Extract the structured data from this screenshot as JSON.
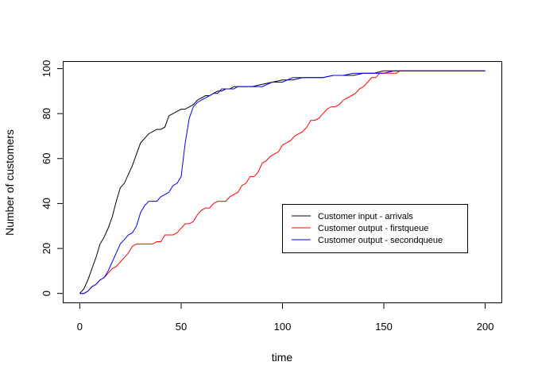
{
  "chart_data": {
    "type": "line",
    "title": "",
    "xlabel": "time",
    "ylabel": "Number of customers",
    "xlim": [
      -8,
      208
    ],
    "ylim": [
      -4,
      103
    ],
    "xticks": [
      0,
      50,
      100,
      150,
      200
    ],
    "yticks": [
      0,
      20,
      40,
      60,
      80,
      100
    ],
    "grid": false,
    "legend": "center-right",
    "series": [
      {
        "name": "Customer input - arrivals",
        "color": "#000000",
        "x": [
          0,
          2,
          4,
          6,
          8,
          10,
          12,
          14,
          16,
          18,
          20,
          22,
          24,
          26,
          28,
          30,
          32,
          34,
          36,
          38,
          40,
          42,
          44,
          46,
          48,
          50,
          52,
          54,
          56,
          58,
          60,
          62,
          64,
          66,
          68,
          70,
          72,
          74,
          76,
          78,
          80,
          85,
          90,
          95,
          100,
          105,
          110,
          115,
          120,
          125,
          130,
          135,
          140,
          145,
          150,
          155,
          160,
          170,
          180,
          190,
          200
        ],
        "y": [
          0,
          2,
          6,
          11,
          16,
          22,
          25,
          29,
          34,
          41,
          47,
          49,
          53,
          57,
          62,
          67,
          69,
          71,
          72,
          73,
          73,
          74,
          79,
          80,
          81,
          82,
          82,
          83,
          84,
          86,
          87,
          88,
          88,
          89,
          90,
          90,
          91,
          91,
          92,
          92,
          92,
          92,
          93,
          94,
          95,
          95,
          96,
          96,
          96,
          97,
          97,
          97,
          98,
          98,
          99,
          99,
          99,
          99,
          99,
          99,
          99
        ]
      },
      {
        "name": "Customer output - firstqueue",
        "color": "#ff0000",
        "x": [
          0,
          2,
          4,
          6,
          8,
          10,
          12,
          14,
          16,
          18,
          20,
          22,
          24,
          26,
          28,
          30,
          32,
          34,
          36,
          38,
          40,
          42,
          44,
          46,
          48,
          50,
          52,
          54,
          56,
          58,
          60,
          62,
          64,
          66,
          68,
          70,
          72,
          74,
          76,
          78,
          80,
          82,
          84,
          86,
          88,
          90,
          92,
          94,
          96,
          98,
          100,
          102,
          104,
          106,
          108,
          110,
          112,
          114,
          116,
          118,
          120,
          122,
          124,
          126,
          128,
          130,
          132,
          134,
          136,
          138,
          140,
          142,
          144,
          146,
          148,
          150,
          152,
          154,
          156,
          158,
          160,
          170,
          180,
          190,
          200
        ],
        "y": [
          0,
          0,
          1,
          3,
          4,
          6,
          7,
          9,
          11,
          12,
          14,
          16,
          18,
          21,
          22,
          22,
          22,
          22,
          22,
          23,
          23,
          26,
          26,
          26,
          27,
          29,
          31,
          31,
          32,
          35,
          37,
          38,
          38,
          40,
          41,
          41,
          41,
          43,
          44,
          45,
          48,
          49,
          52,
          52,
          54,
          58,
          59,
          61,
          62,
          63,
          66,
          67,
          68,
          70,
          71,
          72,
          74,
          77,
          77,
          78,
          80,
          82,
          83,
          83,
          84,
          86,
          87,
          88,
          89,
          91,
          92,
          94,
          96,
          96,
          98,
          98,
          98,
          98,
          98,
          99,
          99,
          99,
          99,
          99,
          99
        ]
      },
      {
        "name": "Customer output - secondqueue",
        "color": "#0000ff",
        "x": [
          0,
          2,
          4,
          6,
          8,
          10,
          12,
          14,
          16,
          18,
          20,
          22,
          24,
          26,
          28,
          30,
          32,
          34,
          36,
          38,
          40,
          42,
          44,
          46,
          48,
          50,
          52,
          54,
          56,
          58,
          60,
          62,
          64,
          66,
          68,
          70,
          72,
          74,
          76,
          78,
          80,
          85,
          90,
          95,
          100,
          105,
          110,
          115,
          120,
          125,
          130,
          135,
          140,
          145,
          150,
          155,
          160,
          170,
          180,
          190,
          200
        ],
        "y": [
          0,
          0,
          1,
          3,
          4,
          6,
          7,
          10,
          14,
          18,
          22,
          24,
          26,
          27,
          30,
          36,
          39,
          41,
          41,
          41,
          43,
          44,
          45,
          48,
          49,
          52,
          67,
          78,
          83,
          85,
          86,
          87,
          88,
          89,
          89,
          91,
          91,
          91,
          91,
          92,
          92,
          92,
          92,
          94,
          94,
          96,
          96,
          96,
          96,
          97,
          97,
          98,
          98,
          98,
          98,
          99,
          99,
          99,
          99,
          99,
          99
        ]
      }
    ]
  }
}
